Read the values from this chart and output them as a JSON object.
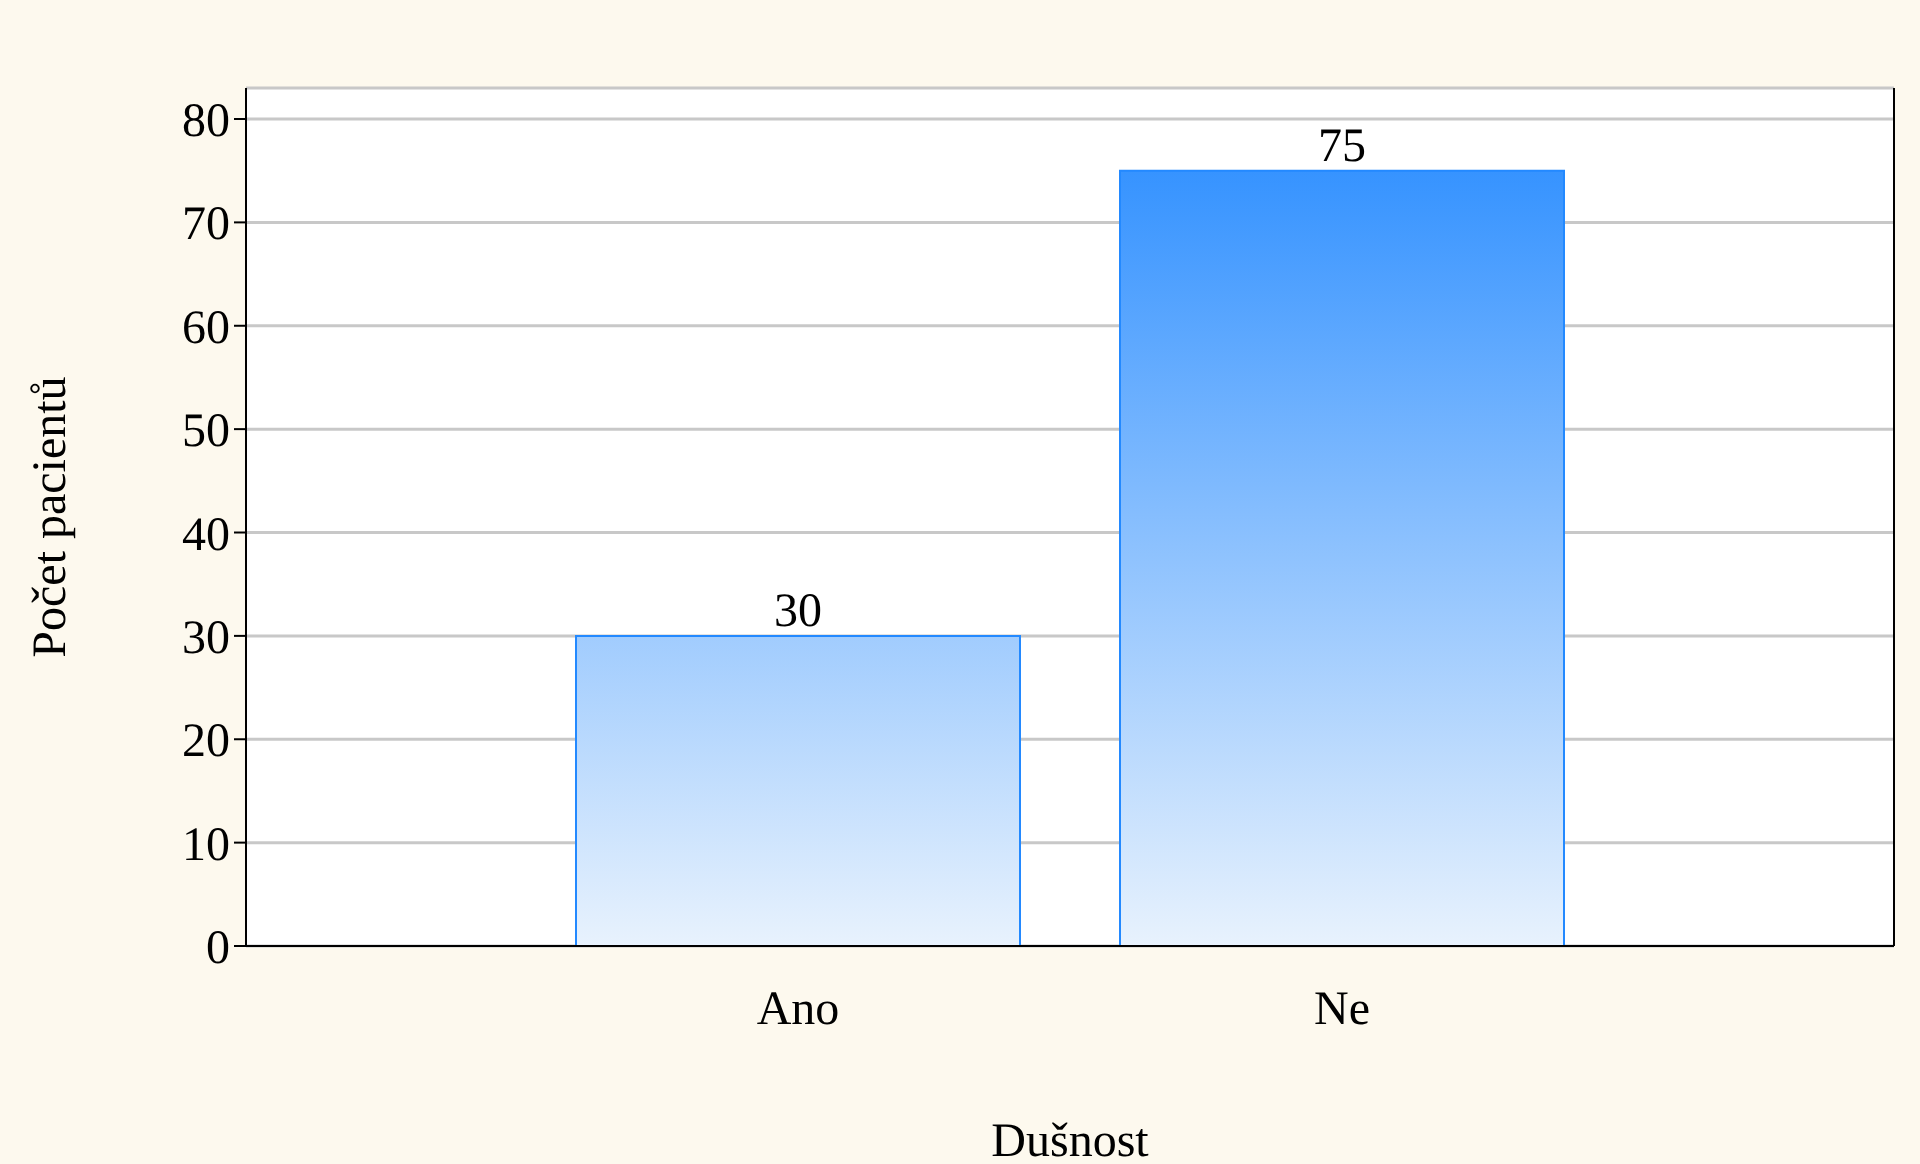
{
  "chart_data": {
    "type": "bar",
    "xlabel": "Dušnost",
    "ylabel": "Počet pacientů",
    "categories": [
      "Ano",
      "Ne"
    ],
    "values": [
      30,
      75
    ],
    "color": "#2389ff",
    "ylim": [
      0,
      83
    ],
    "yticks": [
      0,
      10,
      20,
      30,
      40,
      50,
      60,
      70,
      80
    ],
    "grid": "y",
    "data_labels": true
  }
}
